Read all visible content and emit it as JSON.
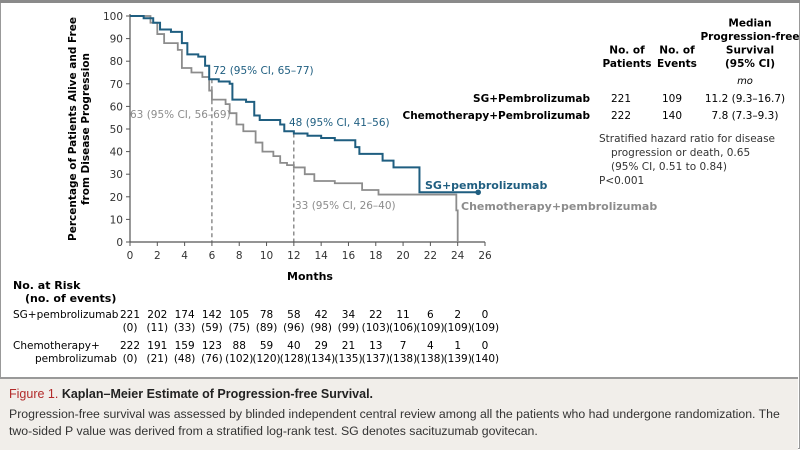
{
  "chart_data": {
    "type": "line",
    "subtype": "kaplan-meier-step",
    "xlabel": "Months",
    "ylabel_line1": "Percentage of Patients Alive and Free",
    "ylabel_line2": "from Disease Progression",
    "xlim": [
      0,
      26
    ],
    "ylim": [
      0,
      100
    ],
    "xticks": [
      0,
      2,
      4,
      6,
      8,
      10,
      12,
      14,
      16,
      18,
      20,
      22,
      24,
      26
    ],
    "yticks": [
      0,
      10,
      20,
      30,
      40,
      50,
      60,
      70,
      80,
      90,
      100
    ],
    "grid": false,
    "series": [
      {
        "name": "SG+pembrolizumab",
        "color": "#1f5e80",
        "points": [
          [
            0,
            100
          ],
          [
            1,
            99
          ],
          [
            1.7,
            97
          ],
          [
            2.2,
            94
          ],
          [
            3,
            93
          ],
          [
            3.8,
            88
          ],
          [
            4.2,
            83
          ],
          [
            5,
            82
          ],
          [
            5.5,
            78
          ],
          [
            5.8,
            72
          ],
          [
            6.5,
            71
          ],
          [
            7.3,
            70
          ],
          [
            7.5,
            63
          ],
          [
            8.5,
            62
          ],
          [
            9.1,
            56
          ],
          [
            9.5,
            54
          ],
          [
            11,
            52
          ],
          [
            11.3,
            49
          ],
          [
            12,
            48
          ],
          [
            13,
            47
          ],
          [
            14,
            46
          ],
          [
            15,
            45
          ],
          [
            16.5,
            42
          ],
          [
            16.8,
            39
          ],
          [
            18.5,
            36
          ],
          [
            19.3,
            33
          ],
          [
            21.2,
            22
          ],
          [
            25.5,
            22
          ]
        ]
      },
      {
        "name": "Chemotherapy+pembrolizumab",
        "color": "#8c8c8c",
        "points": [
          [
            0,
            100
          ],
          [
            1.5,
            97
          ],
          [
            2,
            92
          ],
          [
            2.5,
            88
          ],
          [
            3.5,
            85
          ],
          [
            3.8,
            77
          ],
          [
            4.5,
            75
          ],
          [
            5.3,
            73
          ],
          [
            5.8,
            67
          ],
          [
            6,
            63
          ],
          [
            7,
            61
          ],
          [
            7.3,
            57
          ],
          [
            7.8,
            52
          ],
          [
            8.3,
            49
          ],
          [
            9.2,
            44
          ],
          [
            9.7,
            40
          ],
          [
            10.5,
            38
          ],
          [
            11,
            35
          ],
          [
            11.5,
            34
          ],
          [
            12,
            33
          ],
          [
            12.8,
            30
          ],
          [
            13.5,
            27
          ],
          [
            15,
            26
          ],
          [
            17,
            23
          ],
          [
            18.2,
            21
          ],
          [
            23.8,
            21
          ],
          [
            23.9,
            14
          ],
          [
            24,
            0
          ]
        ]
      }
    ],
    "annotations": [
      {
        "text": "72 (95% CI, 65–77)",
        "series": "SG+pembrolizumab",
        "x": 6,
        "y": 72
      },
      {
        "text": "63 (95% CI, 56–69)",
        "series": "Chemotherapy+pembrolizumab",
        "x": 6,
        "y": 63
      },
      {
        "text": "48 (95% CI, 41–56)",
        "series": "SG+pembrolizumab",
        "x": 12,
        "y": 48
      },
      {
        "text": "33 (95% CI, 26–40)",
        "series": "Chemotherapy+pembrolizumab",
        "x": 12,
        "y": 33
      }
    ],
    "risk_table": {
      "title_line1": "No. at Risk",
      "title_line2": "(no. of events)",
      "rows": [
        {
          "label1": "SG+pembrolizumab",
          "label2": "",
          "at_risk": [
            "221",
            "202",
            "174",
            "142",
            "105",
            "78",
            "58",
            "42",
            "34",
            "22",
            "11",
            "6",
            "2",
            "0"
          ],
          "events": [
            "(0)",
            "(11)",
            "(33)",
            "(59)",
            "(75)",
            "(89)",
            "(96)",
            "(98)",
            "(99)",
            "(103)",
            "(106)",
            "(109)",
            "(109)",
            "(109)"
          ]
        },
        {
          "label1": "Chemotherapy+",
          "label2": "pembrolizumab",
          "at_risk": [
            "222",
            "191",
            "159",
            "123",
            "88",
            "59",
            "40",
            "29",
            "21",
            "13",
            "7",
            "4",
            "1",
            "0"
          ],
          "events": [
            "(0)",
            "(21)",
            "(48)",
            "(76)",
            "(102)",
            "(120)",
            "(128)",
            "(134)",
            "(135)",
            "(137)",
            "(138)",
            "(138)",
            "(139)",
            "(140)"
          ]
        }
      ]
    },
    "summary_table": {
      "headers": [
        [
          "No. of",
          "Patients"
        ],
        [
          "No. of",
          "Events"
        ],
        [
          "Median",
          "Progression-free",
          "Survival",
          "(95% CI)"
        ]
      ],
      "unit": "mo",
      "rows": [
        {
          "label": "SG+Pembrolizumab",
          "patients": "221",
          "events": "109",
          "median": "11.2 (9.3–16.7)"
        },
        {
          "label": "Chemotherapy+Pembrolizumab",
          "patients": "222",
          "events": "140",
          "median": "7.8 (7.3–9.3)"
        }
      ],
      "hr_lines": [
        "Stratified hazard ratio for disease",
        "progression or death, 0.65",
        "(95% CI, 0.51 to 0.84)",
        "P<0.001"
      ]
    }
  },
  "caption": {
    "figure_label": "Figure 1.",
    "title": " Kaplan–Meier Estimate of Progression-free Survival.",
    "body": "Progression-free survival was assessed by blinded independent central review among all the patients who had undergone randomization. The two-sided P value was derived from a stratified log-rank test. SG denotes sacituzumab govitecan."
  }
}
